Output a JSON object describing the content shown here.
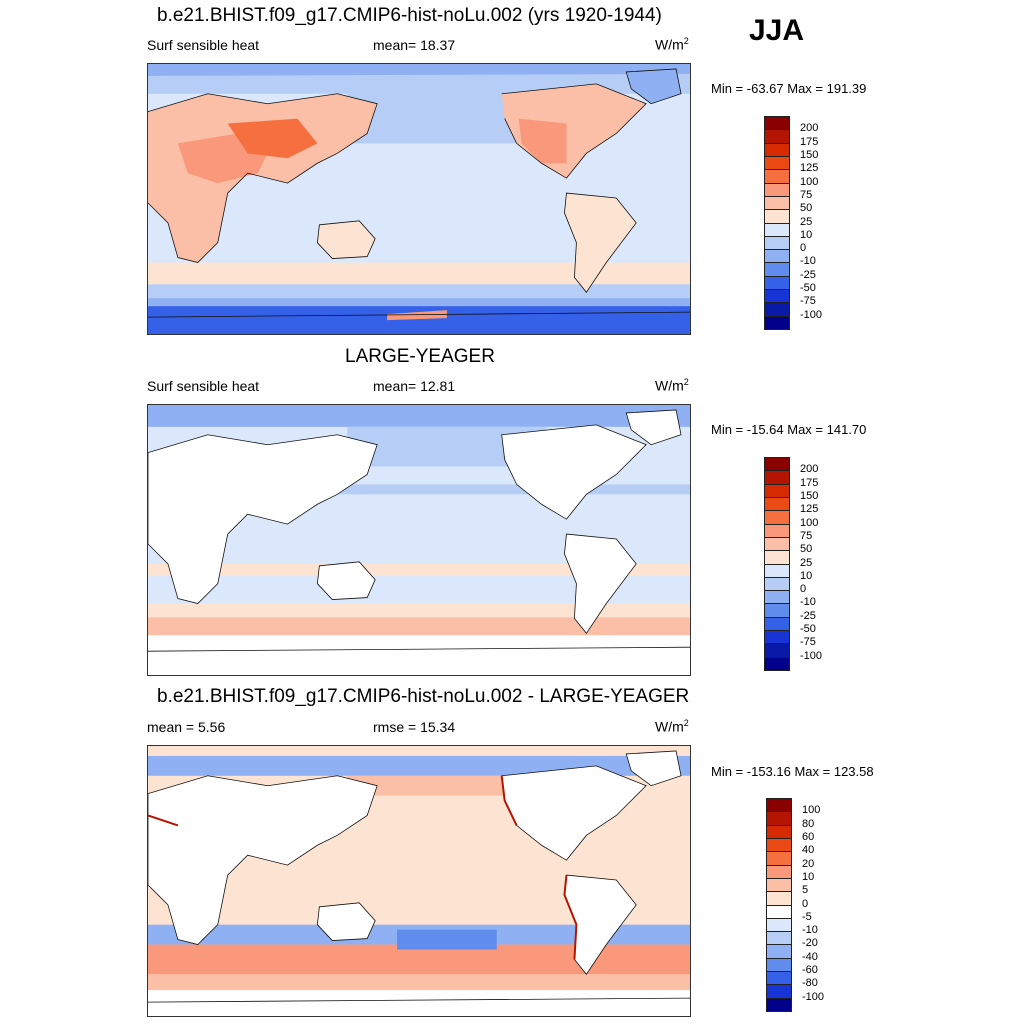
{
  "season": "JJA",
  "colors": {
    "land_white": "#ffffff",
    "coast": "#111111"
  },
  "panels": [
    {
      "title": "b.e21.BHIST.f09_g17.CMIP6-hist-noLu.002 (yrs 1920-1944)",
      "left_label": "Surf sensible heat",
      "center_label": "mean=  18.37",
      "units": "W/m",
      "units_sup": "2",
      "minmax": "Min = -63.67 Max = 191.39",
      "colorbar": {
        "labels": [
          "200",
          "175",
          "150",
          "125",
          "100",
          "75",
          "50",
          "25",
          "10",
          "0",
          "-10",
          "-25",
          "-50",
          "-75",
          "-100"
        ],
        "colors": [
          "#8a0000",
          "#b31500",
          "#d62a00",
          "#ec4a14",
          "#f56f3f",
          "#f9987a",
          "#fbbea6",
          "#fde3d2",
          "#dbe8fb",
          "#b6cdf6",
          "#8fb0f2",
          "#5f8ced",
          "#3560e8",
          "#1834d6",
          "#0a1aa8",
          "#00008a"
        ]
      },
      "land_blank": false
    },
    {
      "title": "LARGE-YEAGER",
      "left_label": "Surf sensible heat",
      "center_label": "mean=  12.81",
      "units": "W/m",
      "units_sup": "2",
      "minmax": "Min = -15.64 Max = 141.70",
      "colorbar": {
        "labels": [
          "200",
          "175",
          "150",
          "125",
          "100",
          "75",
          "50",
          "25",
          "10",
          "0",
          "-10",
          "-25",
          "-50",
          "-75",
          "-100"
        ],
        "colors": [
          "#8a0000",
          "#b31500",
          "#d62a00",
          "#ec4a14",
          "#f56f3f",
          "#f9987a",
          "#fbbea6",
          "#fde3d2",
          "#dbe8fb",
          "#b6cdf6",
          "#8fb0f2",
          "#5f8ced",
          "#3560e8",
          "#1834d6",
          "#0a1aa8",
          "#00008a"
        ]
      },
      "land_blank": true
    },
    {
      "title": "b.e21.BHIST.f09_g17.CMIP6-hist-noLu.002 - LARGE-YEAGER",
      "left_label": "mean =   5.56",
      "center_label": "rmse =  15.34",
      "units": "W/m",
      "units_sup": "2",
      "minmax": "Min = -153.16 Max = 123.58",
      "colorbar": {
        "labels": [
          "100",
          "80",
          "60",
          "40",
          "20",
          "10",
          "5",
          "0",
          "-5",
          "-10",
          "-20",
          "-40",
          "-60",
          "-80",
          "-100"
        ],
        "colors": [
          "#8a0000",
          "#b31500",
          "#d62a00",
          "#ec4a14",
          "#f56f3f",
          "#f9987a",
          "#fbbea6",
          "#fde3d2",
          "#ffffff",
          "#dbe8fb",
          "#b6cdf6",
          "#8fb0f2",
          "#5f8ced",
          "#3560e8",
          "#1834d6",
          "#00008a"
        ]
      },
      "land_blank": true
    }
  ]
}
